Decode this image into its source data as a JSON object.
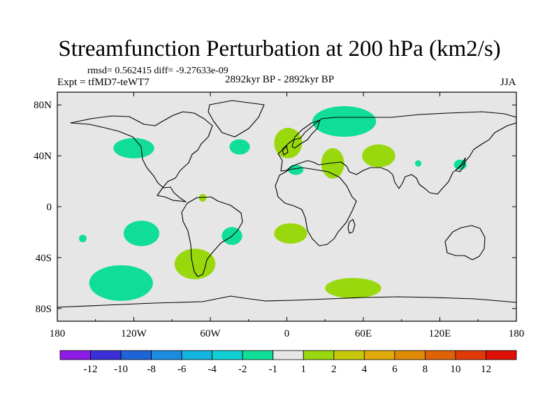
{
  "chart_data": {
    "type": "contour_map",
    "title": "Streamfunction Perturbation at 200 hPa (km2/s)",
    "stats_line": "rmsd= 0.562415 diff= -9.27633e-09",
    "experiment": "Expt = tfMD7-teWT7",
    "period": "2892kyr BP - 2892kyr BP",
    "season": "JJA",
    "xlim": [
      -180,
      180
    ],
    "ylim": [
      -90,
      90
    ],
    "x_ticks": [
      {
        "value": -180,
        "label": "180"
      },
      {
        "value": -120,
        "label": "120W"
      },
      {
        "value": -60,
        "label": "60W"
      },
      {
        "value": 0,
        "label": "0"
      },
      {
        "value": 60,
        "label": "60E"
      },
      {
        "value": 120,
        "label": "120E"
      },
      {
        "value": 180,
        "label": "180"
      }
    ],
    "y_ticks": [
      {
        "value": 80,
        "label": "80N"
      },
      {
        "value": 40,
        "label": "40N"
      },
      {
        "value": 0,
        "label": "0"
      },
      {
        "value": -40,
        "label": "40S"
      },
      {
        "value": -80,
        "label": "80S"
      }
    ],
    "background_color": "#e6e6e6",
    "colorbar": {
      "colors": [
        "#8e1ce6",
        "#3a2fd6",
        "#1e64d8",
        "#1b8ce0",
        "#13b4e0",
        "#10cfd4",
        "#10de98",
        "#e6e6e6",
        "#9ad80e",
        "#c8c80a",
        "#e0aa08",
        "#e08a06",
        "#e06206",
        "#e03a06",
        "#e01006"
      ],
      "labels": [
        "-12",
        "-10",
        "-8",
        "-6",
        "-4",
        "-2",
        "-1",
        "1",
        "2",
        "4",
        "6",
        "8",
        "10",
        "12"
      ]
    },
    "anomalies": [
      {
        "lon": -120,
        "lat": 46,
        "rlon": 16,
        "rlat": 8,
        "level": "-2 to -1"
      },
      {
        "lon": -37,
        "lat": 47,
        "rlon": 8,
        "rlat": 6,
        "level": "-2 to -1"
      },
      {
        "lon": 1,
        "lat": 50,
        "rlon": 11,
        "rlat": 12,
        "level": "1 to 2"
      },
      {
        "lon": 45,
        "lat": 67,
        "rlon": 25,
        "rlat": 12,
        "level": "-2 to -1"
      },
      {
        "lon": 7,
        "lat": 29,
        "rlon": 6,
        "rlat": 4,
        "level": "-2 to -1"
      },
      {
        "lon": 36,
        "lat": 34,
        "rlon": 9,
        "rlat": 12,
        "level": "1 to 2"
      },
      {
        "lon": 72,
        "lat": 40,
        "rlon": 13,
        "rlat": 9,
        "level": "1 to 2"
      },
      {
        "lon": 103,
        "lat": 34,
        "rlon": 2.5,
        "rlat": 2.5,
        "level": "-2 to -1"
      },
      {
        "lon": 136,
        "lat": 33,
        "rlon": 5,
        "rlat": 4,
        "level": "-2 to -1"
      },
      {
        "lon": -66,
        "lat": 7,
        "rlon": 3,
        "rlat": 3,
        "level": "1 to 2"
      },
      {
        "lon": -160,
        "lat": -25,
        "rlon": 3,
        "rlat": 3,
        "level": "-2 to -1"
      },
      {
        "lon": -114,
        "lat": -21,
        "rlon": 14,
        "rlat": 10,
        "level": "-2 to -1"
      },
      {
        "lon": -43,
        "lat": -23,
        "rlon": 8,
        "rlat": 7,
        "level": "-2 to -1"
      },
      {
        "lon": 3,
        "lat": -21,
        "rlon": 13,
        "rlat": 8,
        "level": "1 to 2"
      },
      {
        "lon": -72,
        "lat": -45,
        "rlon": 16,
        "rlat": 12,
        "level": "1 to 2"
      },
      {
        "lon": -130,
        "lat": -60,
        "rlon": 25,
        "rlat": 14,
        "level": "-2 to -1"
      },
      {
        "lon": 52,
        "lat": -64,
        "rlon": 22,
        "rlat": 8,
        "level": "1 to 2"
      }
    ]
  }
}
